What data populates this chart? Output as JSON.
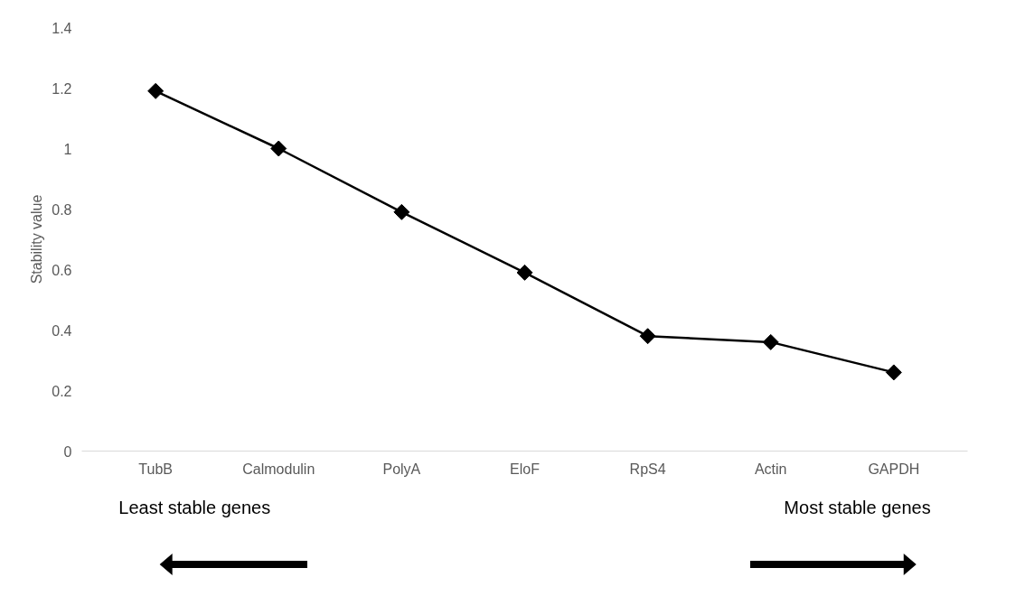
{
  "chart_data": {
    "type": "line",
    "ylabel": "Stability value",
    "categories": [
      "TubB",
      "Calmodulin",
      "PolyA",
      "EloF",
      "RpS4",
      "Actin",
      "GAPDH"
    ],
    "series": [
      {
        "color": "#000000",
        "values": [
          1.19,
          1.0,
          0.79,
          0.59,
          0.38,
          0.36,
          0.26
        ]
      }
    ],
    "ylim": [
      0,
      1.4
    ],
    "yticks": [
      0,
      0.2,
      0.4,
      0.6,
      0.8,
      1,
      1.2,
      1.4
    ],
    "marker": "diamond",
    "line_style": "solid",
    "grid": false,
    "annotations": [
      "Least stable genes",
      "Most stable genes"
    ]
  }
}
